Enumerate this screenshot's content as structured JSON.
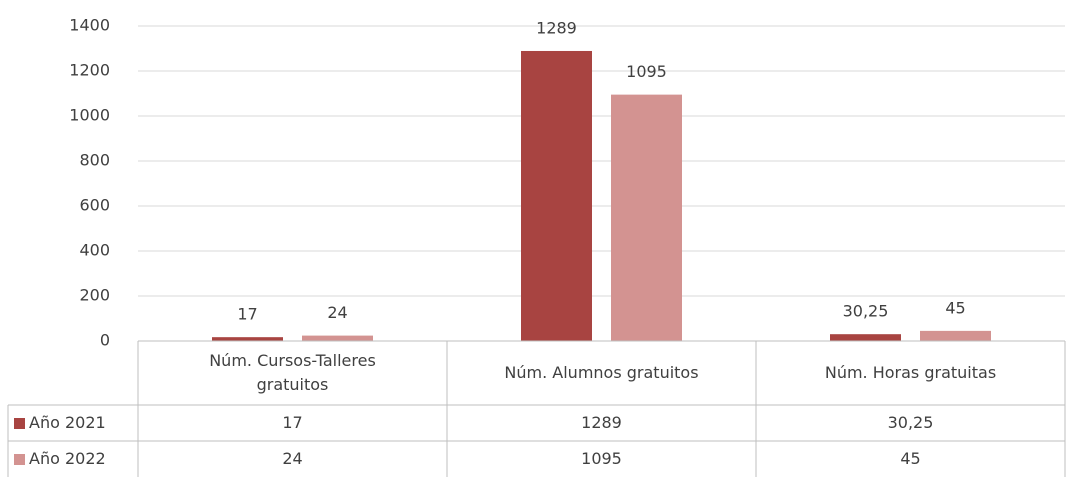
{
  "chart_data": {
    "type": "bar",
    "categories": [
      "Núm. Cursos-Talleres gratuitos",
      "Núm. Alumnos gratuitos",
      "Núm. Horas gratuitas"
    ],
    "series": [
      {
        "name": "Año 2021",
        "color": "#a84441",
        "values": [
          17,
          1289,
          30.25
        ],
        "value_labels": [
          "17",
          "1289",
          "30,25"
        ]
      },
      {
        "name": "Año 2022",
        "color": "#d39391",
        "values": [
          24,
          1095,
          45
        ],
        "value_labels": [
          "24",
          "1095",
          "45"
        ]
      }
    ],
    "ylim": [
      0,
      1400
    ],
    "yticks": [
      0,
      200,
      400,
      600,
      800,
      1000,
      1200,
      1400
    ],
    "grid": true
  }
}
